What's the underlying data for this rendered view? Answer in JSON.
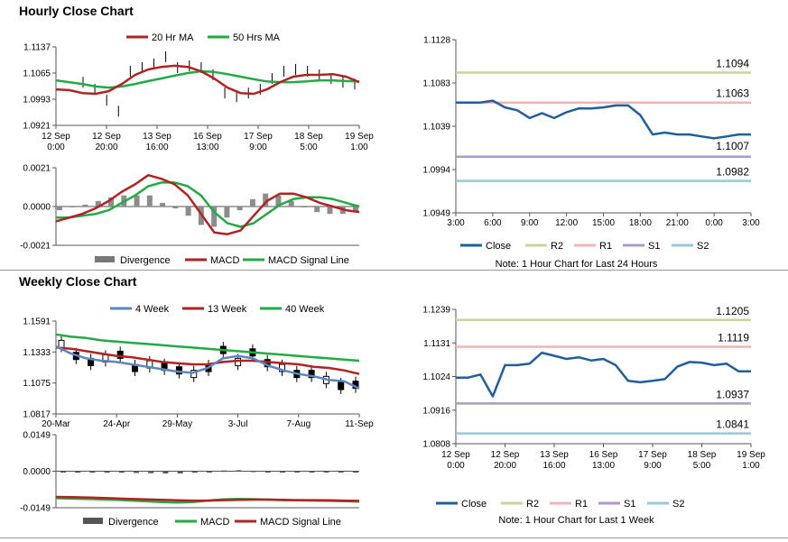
{
  "hourly_title": "Hourly Close Chart",
  "weekly_title": "Weekly Close Chart",
  "colors": {
    "ma_fast": "#b22222",
    "ma_slow": "#22aa44",
    "close": "#1f5f9e",
    "r2": "#c5d59b",
    "r1": "#f0b4b4",
    "s1": "#a99bc8",
    "s2": "#94cbd6",
    "four_week": "#5b86c0",
    "divergence": "#8c8c8c"
  },
  "chart_data": [
    {
      "id": "hourly_price",
      "type": "line",
      "title": "",
      "legend": [
        "20 Hr MA",
        "50 Hrs MA"
      ],
      "y_ticks": [
        "1.1137",
        "1.1065",
        "1.0993",
        "1.0921"
      ],
      "ylim": [
        1.0921,
        1.1137
      ],
      "x_ticks": [
        [
          "12 Sep",
          "0:00"
        ],
        [
          "12 Sep",
          "20:00"
        ],
        [
          "13 Sep",
          "16:00"
        ],
        [
          "16 Sep",
          "13:00"
        ],
        [
          "17 Sep",
          "9:00"
        ],
        [
          "18 Sep",
          "5:00"
        ],
        [
          "19 Sep",
          "1:00"
        ]
      ],
      "ma20": [
        1.102,
        1.1018,
        1.101,
        1.1008,
        1.1015,
        1.1035,
        1.106,
        1.1075,
        1.1082,
        1.1085,
        1.1082,
        1.107,
        1.105,
        1.1025,
        1.101,
        1.1008,
        1.102,
        1.104,
        1.1055,
        1.106,
        1.106,
        1.1062,
        1.1055,
        1.104
      ],
      "ma50": [
        1.1045,
        1.104,
        1.1035,
        1.1028,
        1.1025,
        1.1028,
        1.1035,
        1.1043,
        1.105,
        1.1058,
        1.1065,
        1.107,
        1.1068,
        1.1062,
        1.1055,
        1.1048,
        1.1042,
        1.104,
        1.104,
        1.1042,
        1.1045,
        1.1045,
        1.1043,
        1.1042
      ],
      "close": [
        1.104,
        1.102,
        1.099,
        1.096,
        1.107,
        1.108,
        1.109,
        1.111,
        1.108,
        1.1085,
        1.108,
        1.106,
        1.101,
        1.1,
        1.101,
        1.102,
        1.105,
        1.107,
        1.1075,
        1.107,
        1.106,
        1.105,
        1.104,
        1.1035
      ]
    },
    {
      "id": "hourly_macd",
      "type": "line",
      "legend": [
        "Divergence",
        "MACD",
        "MACD Signal Line"
      ],
      "y_ticks": [
        "0.0021",
        "0.0000",
        "-0.0021"
      ],
      "ylim": [
        -0.0021,
        0.0021
      ],
      "macd": [
        -0.0008,
        -0.0006,
        -0.0004,
        -0.0001,
        0.0003,
        0.0008,
        0.0012,
        0.0017,
        0.0015,
        0.0012,
        0.0006,
        -0.0004,
        -0.0014,
        -0.0015,
        -0.0013,
        -0.0005,
        0.0003,
        0.0007,
        0.0007,
        0.0005,
        0.0002,
        0.0,
        -0.0002,
        -0.0003
      ],
      "signal": [
        -0.0006,
        -0.0006,
        -0.0005,
        -0.0004,
        -0.0002,
        0.0002,
        0.0006,
        0.0011,
        0.0013,
        0.0013,
        0.0011,
        0.0006,
        -0.0003,
        -0.0009,
        -0.0011,
        -0.0009,
        -0.0004,
        0.0001,
        0.0004,
        0.0005,
        0.0005,
        0.0004,
        0.0002,
        0.0
      ],
      "divergence": [
        -0.0002,
        0.0,
        0.0001,
        0.0003,
        0.0005,
        0.0006,
        0.0006,
        0.0006,
        0.0002,
        -0.0001,
        -0.0005,
        -0.001,
        -0.0011,
        -0.0006,
        -0.0002,
        0.0004,
        0.0007,
        0.0006,
        0.0003,
        0.0,
        -0.0003,
        -0.0004,
        -0.0004,
        -0.0003
      ]
    },
    {
      "id": "hourly_levels",
      "type": "line",
      "y_ticks": [
        "1.1128",
        "1.1083",
        "1.1039",
        "1.0994",
        "1.0949"
      ],
      "ylim": [
        1.0949,
        1.1128
      ],
      "x_ticks": [
        "3:00",
        "6:00",
        "9:00",
        "12:00",
        "15:00",
        "18:00",
        "21:00",
        "0:00",
        "3:00"
      ],
      "close": [
        1.1063,
        1.1063,
        1.1063,
        1.1065,
        1.1058,
        1.1055,
        1.1047,
        1.1052,
        1.1047,
        1.1053,
        1.1057,
        1.1057,
        1.1058,
        1.106,
        1.106,
        1.105,
        1.103,
        1.1032,
        1.103,
        1.103,
        1.1028,
        1.1026,
        1.1028,
        1.103,
        1.103
      ],
      "levels": [
        {
          "name": "R2",
          "value": 1.1094,
          "label": "1.1094"
        },
        {
          "name": "R1",
          "value": 1.1063,
          "label": "1.1063"
        },
        {
          "name": "S1",
          "value": 1.1007,
          "label": "1.1007"
        },
        {
          "name": "S2",
          "value": 1.0982,
          "label": "1.0982"
        }
      ],
      "legend": [
        "Close",
        "R2",
        "R1",
        "S1",
        "S2"
      ],
      "note": "Note: 1 Hour Chart for Last 24 Hours"
    },
    {
      "id": "weekly_price",
      "type": "line",
      "legend": [
        "4 Week",
        "13 Week",
        "40 Week"
      ],
      "y_ticks": [
        "1.1591",
        "1.1333",
        "1.1075",
        "1.0817"
      ],
      "ylim": [
        1.0817,
        1.1591
      ],
      "x_ticks": [
        "20-Mar",
        "24-Apr",
        "29-May",
        "3-Jul",
        "7-Aug",
        "11-Sep"
      ],
      "week4": [
        1.138,
        1.132,
        1.128,
        1.126,
        1.125,
        1.123,
        1.121,
        1.119,
        1.117,
        1.116,
        1.12,
        1.128,
        1.13,
        1.128,
        1.122,
        1.118,
        1.115,
        1.113,
        1.11,
        1.109,
        1.103
      ],
      "week13": [
        1.137,
        1.136,
        1.134,
        1.132,
        1.13,
        1.129,
        1.127,
        1.125,
        1.124,
        1.123,
        1.123,
        1.125,
        1.126,
        1.126,
        1.125,
        1.124,
        1.123,
        1.121,
        1.12,
        1.118,
        1.115
      ],
      "week40": [
        1.148,
        1.146,
        1.145,
        1.143,
        1.142,
        1.141,
        1.14,
        1.139,
        1.138,
        1.137,
        1.136,
        1.135,
        1.134,
        1.133,
        1.132,
        1.131,
        1.13,
        1.129,
        1.128,
        1.127,
        1.126
      ],
      "close": [
        1.14,
        1.13,
        1.125,
        1.128,
        1.131,
        1.12,
        1.123,
        1.121,
        1.118,
        1.115,
        1.12,
        1.135,
        1.125,
        1.133,
        1.124,
        1.12,
        1.115,
        1.115,
        1.11,
        1.105,
        1.106
      ]
    },
    {
      "id": "weekly_macd",
      "type": "line",
      "legend": [
        "Divergence",
        "MACD",
        "MACD Signal Line"
      ],
      "y_ticks": [
        "0.0149",
        "0.0000",
        "-0.0149"
      ],
      "ylim": [
        -0.0149,
        0.0149
      ],
      "macd": [
        -0.011,
        -0.0112,
        -0.0113,
        -0.0115,
        -0.0117,
        -0.012,
        -0.0123,
        -0.0126,
        -0.0128,
        -0.0126,
        -0.012,
        -0.0115,
        -0.0113,
        -0.0114,
        -0.0116,
        -0.0118,
        -0.0119,
        -0.012,
        -0.0121,
        -0.0122,
        -0.0124
      ],
      "signal": [
        -0.0105,
        -0.0106,
        -0.0107,
        -0.0109,
        -0.0111,
        -0.0113,
        -0.0115,
        -0.0117,
        -0.0119,
        -0.012,
        -0.012,
        -0.0118,
        -0.0117,
        -0.0116,
        -0.0116,
        -0.0117,
        -0.0118,
        -0.0118,
        -0.0119,
        -0.012,
        -0.0121
      ],
      "divergence": [
        -0.0005,
        -0.0006,
        -0.0006,
        -0.0006,
        -0.0006,
        -0.0007,
        -0.0008,
        -0.0009,
        -0.0009,
        -0.0006,
        0.0,
        0.0003,
        0.0004,
        0.0002,
        0.0,
        -0.0001,
        -0.0001,
        -0.0002,
        -0.0002,
        -0.0002,
        -0.0003
      ]
    },
    {
      "id": "weekly_levels",
      "type": "line",
      "y_ticks": [
        "1.1239",
        "1.1131",
        "1.1024",
        "1.0916",
        "1.0808"
      ],
      "ylim": [
        1.0808,
        1.1239
      ],
      "x_ticks": [
        [
          "12 Sep",
          "0:00"
        ],
        [
          "12 Sep",
          "20:00"
        ],
        [
          "13 Sep",
          "16:00"
        ],
        [
          "16 Sep",
          "13:00"
        ],
        [
          "17 Sep",
          "9:00"
        ],
        [
          "18 Sep",
          "5:00"
        ],
        [
          "19 Sep",
          "1:00"
        ]
      ],
      "close": [
        1.102,
        1.102,
        1.103,
        1.096,
        1.106,
        1.106,
        1.1065,
        1.11,
        1.109,
        1.108,
        1.1085,
        1.1075,
        1.108,
        1.106,
        1.101,
        1.1005,
        1.101,
        1.1015,
        1.1055,
        1.107,
        1.1068,
        1.106,
        1.1065,
        1.104,
        1.104
      ],
      "levels": [
        {
          "name": "R2",
          "value": 1.1205,
          "label": "1.1205"
        },
        {
          "name": "R1",
          "value": 1.1119,
          "label": "1.1119"
        },
        {
          "name": "S1",
          "value": 1.0937,
          "label": "1.0937"
        },
        {
          "name": "S2",
          "value": 1.0841,
          "label": "1.0841"
        }
      ],
      "legend": [
        "Close",
        "R2",
        "R1",
        "S1",
        "S2"
      ],
      "note": "Note: 1 Hour Chart for Last 1 Week"
    }
  ]
}
